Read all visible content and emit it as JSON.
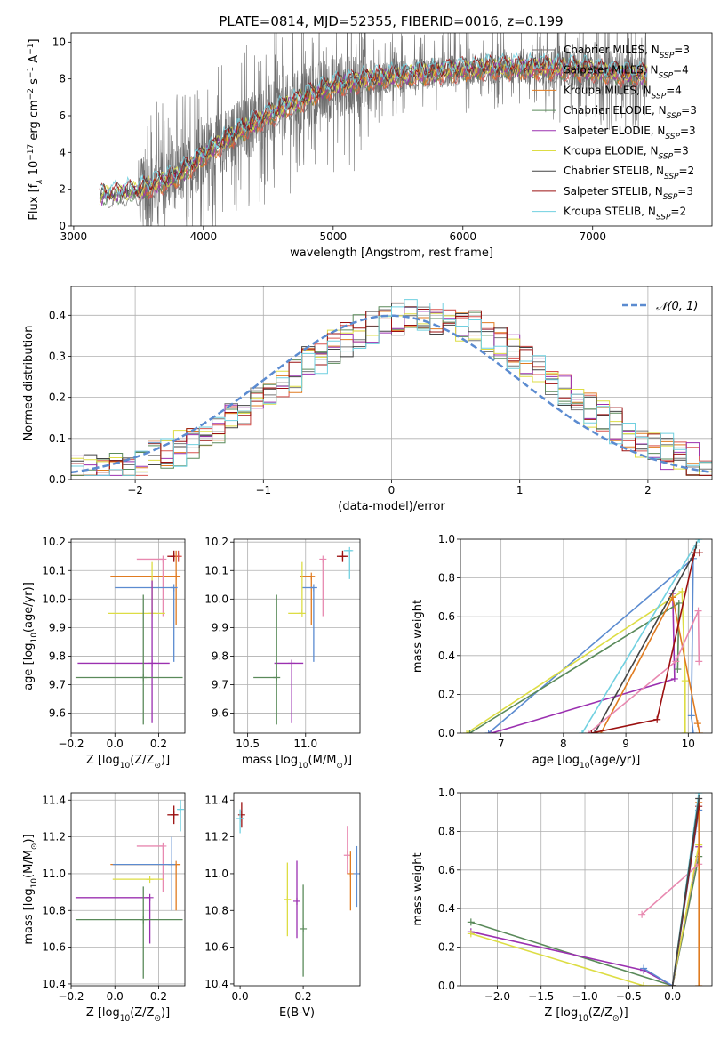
{
  "chart_data": [
    {
      "id": "spectrum",
      "type": "line",
      "title": "PLATE=0814, MJD=52355, FIBERID=0016, z=0.199",
      "xlabel": "wavelength [Angstrom, rest frame]",
      "ylabel": "Flux [f_λ 10^-17 erg cm^-2 s^-1 A^-1]",
      "xlim": [
        2980,
        7920
      ],
      "ylim": [
        0,
        10.5
      ],
      "xticks": [
        3000,
        4000,
        5000,
        6000,
        7000
      ],
      "yticks": [
        0,
        2,
        4,
        6,
        8,
        10
      ],
      "grid": false,
      "legend_position": "top-right",
      "legend": [
        {
          "name": "Chabrier MILES, N_SSP=3",
          "color": "#777777"
        },
        {
          "name": "Salpeter MILES, N_SSP=4",
          "color": "#d9534f"
        },
        {
          "name": "Kroupa MILES, N_SSP=4",
          "color": "#e07b20"
        },
        {
          "name": "Chabrier ELODIE, N_SSP=3",
          "color": "#5a8a5a"
        },
        {
          "name": "Salpeter ELODIE, N_SSP=3",
          "color": "#9b30b0"
        },
        {
          "name": "Kroupa ELODIE, N_SSP=3",
          "color": "#dddd44"
        },
        {
          "name": "Chabrier STELIB, N_SSP=2",
          "color": "#444444"
        },
        {
          "name": "Salpeter STELIB, N_SSP=3",
          "color": "#9b1010"
        },
        {
          "name": "Kroupa STELIB, N_SSP=2",
          "color": "#70d0e0"
        }
      ],
      "continuum_x": [
        3200,
        3500,
        3800,
        4000,
        4200,
        4500,
        4800,
        5000,
        5300,
        5600,
        6000,
        6300,
        6600,
        6900,
        7200,
        7400
      ],
      "continuum_y": [
        1.6,
        1.9,
        2.7,
        3.8,
        4.8,
        6.0,
        7.0,
        7.6,
        8.0,
        8.2,
        8.5,
        8.6,
        8.6,
        8.5,
        8.3,
        8.2
      ]
    },
    {
      "id": "residuals",
      "type": "step",
      "xlabel": "(data-model)/error",
      "ylabel": "Normed distribution",
      "xlim": [
        -2.5,
        2.5
      ],
      "ylim": [
        0,
        0.47
      ],
      "xticks": [
        -2,
        -1,
        0,
        1,
        2
      ],
      "yticks": [
        0.0,
        0.1,
        0.2,
        0.3,
        0.4
      ],
      "grid": true,
      "legend_position": "top-right",
      "legend": [
        {
          "name": "N(0,1)",
          "label": "𝒩(0, 1)",
          "color": "#5b8bd0"
        }
      ],
      "gaussian": {
        "mean": 0,
        "sigma": 1
      }
    },
    {
      "id": "age-vs-Z",
      "type": "errorbar",
      "xlabel": "Z [log10(Z/Z☉)]",
      "ylabel": "age [log10(age/yr)]",
      "xlim": [
        -0.2,
        0.32
      ],
      "ylim": [
        9.53,
        10.21
      ],
      "xticks": [
        -0.2,
        0.0,
        0.2
      ],
      "yticks": [
        9.6,
        9.7,
        9.8,
        9.9,
        10.0,
        10.1,
        10.2
      ],
      "grid": true,
      "points": [
        {
          "color": "#9b1010",
          "x": 0.27,
          "xerr": [
            0.03,
            0.02
          ],
          "y": 10.15,
          "yerr": [
            0.02,
            0.02
          ]
        },
        {
          "color": "#d9534f",
          "x": 0.29,
          "xerr": [
            0.01,
            0.01
          ],
          "y": 10.15,
          "yerr": [
            0.02,
            0.02
          ]
        },
        {
          "color": "#e07b20",
          "x": 0.28,
          "xerr": [
            0.3,
            0.02
          ],
          "y": 10.08,
          "yerr": [
            0.17,
            0.09
          ]
        },
        {
          "color": "#e889b0",
          "x": 0.22,
          "xerr": [
            0.12,
            0.0
          ],
          "y": 10.14,
          "yerr": [
            0.2,
            0.0
          ]
        },
        {
          "color": "#5b8bd0",
          "x": 0.27,
          "xerr": [
            0.27,
            0.0
          ],
          "y": 10.04,
          "yerr": [
            0.26,
            0.0
          ]
        },
        {
          "color": "#dddd44",
          "x": 0.17,
          "xerr": [
            0.2,
            0.06
          ],
          "y": 9.95,
          "yerr": [
            0.0,
            0.18
          ]
        },
        {
          "color": "#9b30b0",
          "x": 0.17,
          "xerr": [
            0.34,
            0.08
          ],
          "y": 9.775,
          "yerr": [
            0.21,
            0.29
          ]
        },
        {
          "color": "#5a8a5a",
          "x": 0.13,
          "xerr": [
            0.31,
            0.18
          ],
          "y": 9.725,
          "yerr": [
            0.165,
            0.29
          ]
        }
      ]
    },
    {
      "id": "age-vs-mass",
      "type": "errorbar",
      "xlabel": "mass [log10(M/M☉)]",
      "ylabel": "",
      "xlim": [
        10.38,
        11.47
      ],
      "ylim": [
        9.53,
        10.21
      ],
      "xticks": [
        10.5,
        11.0
      ],
      "yticks": [
        9.6,
        9.7,
        9.8,
        9.9,
        10.0,
        10.1,
        10.2
      ],
      "grid": true,
      "points": [
        {
          "color": "#9b1010",
          "x": 11.32,
          "xerr": [
            0.05,
            0.05
          ],
          "y": 10.15,
          "yerr": [
            0.02,
            0.02
          ]
        },
        {
          "color": "#70d0e0",
          "x": 11.38,
          "xerr": [
            0.05,
            0.02
          ],
          "y": 10.17,
          "yerr": [
            0.1,
            0.0
          ]
        },
        {
          "color": "#e07b20",
          "x": 11.05,
          "xerr": [
            0.1,
            0.0
          ],
          "y": 10.08,
          "yerr": [
            0.17,
            0.0
          ]
        },
        {
          "color": "#e889b0",
          "x": 11.15,
          "xerr": [
            0.0,
            0.0
          ],
          "y": 10.14,
          "yerr": [
            0.2,
            0.0
          ]
        },
        {
          "color": "#5b8bd0",
          "x": 11.07,
          "xerr": [
            0.1,
            0.0
          ],
          "y": 10.04,
          "yerr": [
            0.26,
            0.0
          ]
        },
        {
          "color": "#dddd44",
          "x": 10.97,
          "xerr": [
            0.12,
            0.0
          ],
          "y": 9.95,
          "yerr": [
            0.0,
            0.18
          ]
        },
        {
          "color": "#9b30b0",
          "x": 10.88,
          "xerr": [
            0.15,
            0.1
          ],
          "y": 9.775,
          "yerr": [
            0.21,
            0.0
          ]
        },
        {
          "color": "#5a8a5a",
          "x": 10.75,
          "xerr": [
            0.2,
            0.0
          ],
          "y": 9.725,
          "yerr": [
            0.165,
            0.29
          ]
        }
      ]
    },
    {
      "id": "massweight-vs-age",
      "type": "line",
      "xlabel": "age [log10(age/yr)]",
      "ylabel": "mass weight",
      "xlim": [
        6.35,
        10.38
      ],
      "ylim": [
        0,
        1
      ],
      "xticks": [
        7,
        8,
        9,
        10
      ],
      "yticks": [
        0.0,
        0.2,
        0.4,
        0.6,
        0.8,
        1.0
      ],
      "grid": true,
      "series": [
        {
          "color": "#5b8bd0",
          "x": [
            6.8,
            10.08,
            10.05,
            10.08
          ],
          "y": [
            0.0,
            0.9,
            0.09,
            0.0
          ]
        },
        {
          "color": "#9b30b0",
          "x": [
            6.85,
            9.78,
            9.75
          ],
          "y": [
            0.0,
            0.28,
            0.72
          ]
        },
        {
          "color": "#dddd44",
          "x": [
            6.45,
            9.9,
            9.95,
            9.95
          ],
          "y": [
            0.0,
            0.73,
            0.27,
            0.0
          ]
        },
        {
          "color": "#5a8a5a",
          "x": [
            6.5,
            9.85,
            9.83
          ],
          "y": [
            0.0,
            0.67,
            0.33
          ]
        },
        {
          "color": "#70d0e0",
          "x": [
            8.3,
            10.17
          ],
          "y": [
            0.0,
            1.0
          ]
        },
        {
          "color": "#444444",
          "x": [
            8.5,
            10.1,
            10.13
          ],
          "y": [
            0.0,
            0.93,
            0.97
          ]
        },
        {
          "color": "#e07b20",
          "x": [
            8.6,
            9.75,
            10.15,
            10.18
          ],
          "y": [
            0.0,
            0.7,
            0.05,
            0.0
          ]
        },
        {
          "color": "#e889b0",
          "x": [
            8.4,
            9.8,
            10.16,
            10.17
          ],
          "y": [
            0.0,
            0.37,
            0.63,
            0.37
          ]
        },
        {
          "color": "#9b1010",
          "x": [
            8.45,
            9.5,
            10.1,
            10.18
          ],
          "y": [
            0.0,
            0.07,
            0.93,
            0.93
          ]
        }
      ]
    },
    {
      "id": "mass-vs-Z",
      "type": "errorbar",
      "xlabel": "Z [log10(Z/Z☉)]",
      "ylabel": "mass [log10(M/M☉)]",
      "xlim": [
        -0.2,
        0.32
      ],
      "ylim": [
        10.39,
        11.44
      ],
      "xticks": [
        -0.2,
        0.0,
        0.2
      ],
      "yticks": [
        10.4,
        10.6,
        10.8,
        11.0,
        11.2,
        11.4
      ],
      "grid": true,
      "points": [
        {
          "color": "#9b1010",
          "x": 0.27,
          "xerr": [
            0.03,
            0.02
          ],
          "y": 11.32,
          "yerr": [
            0.05,
            0.05
          ]
        },
        {
          "color": "#70d0e0",
          "x": 0.3,
          "xerr": [
            0.01,
            0.0
          ],
          "y": 11.35,
          "yerr": [
            0.12,
            0.05
          ]
        },
        {
          "color": "#e07b20",
          "x": 0.28,
          "xerr": [
            0.3,
            0.02
          ],
          "y": 11.05,
          "yerr": [
            0.25,
            0.0
          ]
        },
        {
          "color": "#e889b0",
          "x": 0.22,
          "xerr": [
            0.12,
            0.0
          ],
          "y": 11.15,
          "yerr": [
            0.25,
            0.0
          ]
        },
        {
          "color": "#5b8bd0",
          "x": 0.26,
          "xerr": [
            0.27,
            0.0
          ],
          "y": 11.05,
          "yerr": [
            0.25,
            0.15
          ]
        },
        {
          "color": "#dddd44",
          "x": 0.16,
          "xerr": [
            0.17,
            0.06
          ],
          "y": 10.97,
          "yerr": [
            0.0,
            0.0
          ]
        },
        {
          "color": "#9b30b0",
          "x": 0.16,
          "xerr": [
            0.34,
            0.0
          ],
          "y": 10.87,
          "yerr": [
            0.25,
            0.0
          ]
        },
        {
          "color": "#5a8a5a",
          "x": 0.13,
          "xerr": [
            0.31,
            0.18
          ],
          "y": 10.75,
          "yerr": [
            0.32,
            0.18
          ]
        }
      ]
    },
    {
      "id": "mass-vs-EBV",
      "type": "errorbar",
      "xlabel": "E(B-V)",
      "ylabel": "",
      "xlim": [
        -0.02,
        0.38
      ],
      "ylim": [
        10.39,
        11.44
      ],
      "xticks": [
        0.0,
        0.2
      ],
      "yticks": [
        10.4,
        10.6,
        10.8,
        11.0,
        11.2,
        11.4
      ],
      "grid": false,
      "points": [
        {
          "color": "#9b1010",
          "x": 0.005,
          "xerr": [
            0,
            0
          ],
          "y": 11.32,
          "yerr": [
            0.07,
            0.07
          ]
        },
        {
          "color": "#70d0e0",
          "x": 0.0,
          "xerr": [
            0,
            0
          ],
          "y": 11.3,
          "yerr": [
            0.08,
            0.05
          ]
        },
        {
          "color": "#dddd44",
          "x": 0.15,
          "xerr": [
            0,
            0
          ],
          "y": 10.86,
          "yerr": [
            0.2,
            0.2
          ]
        },
        {
          "color": "#9b30b0",
          "x": 0.18,
          "xerr": [
            0,
            0
          ],
          "y": 10.85,
          "yerr": [
            0.2,
            0.22
          ]
        },
        {
          "color": "#5a8a5a",
          "x": 0.2,
          "xerr": [
            0,
            0
          ],
          "y": 10.7,
          "yerr": [
            0.26,
            0.24
          ]
        },
        {
          "color": "#e889b0",
          "x": 0.34,
          "xerr": [
            0,
            0
          ],
          "y": 11.1,
          "yerr": [
            0.1,
            0.16
          ]
        },
        {
          "color": "#e07b20",
          "x": 0.35,
          "xerr": [
            0,
            0
          ],
          "y": 11.0,
          "yerr": [
            0.2,
            0.12
          ]
        },
        {
          "color": "#5b8bd0",
          "x": 0.37,
          "xerr": [
            0,
            0
          ],
          "y": 11.0,
          "yerr": [
            0.18,
            0.15
          ]
        }
      ]
    },
    {
      "id": "massweight-vs-Z",
      "type": "line",
      "xlabel": "Z [log10(Z/Z☉)]",
      "ylabel": "mass weight",
      "xlim": [
        -2.42,
        0.45
      ],
      "ylim": [
        0,
        1
      ],
      "xticks": [
        -2.0,
        -1.5,
        -1.0,
        -0.5,
        0.0
      ],
      "yticks": [
        0.0,
        0.2,
        0.4,
        0.6,
        0.8,
        1.0
      ],
      "grid": true,
      "series": [
        {
          "color": "#5a8a5a",
          "x": [
            -2.3,
            0.0,
            0.3
          ],
          "y": [
            0.33,
            0.0,
            0.67
          ]
        },
        {
          "color": "#9b30b0",
          "x": [
            -2.3,
            -0.33,
            0.0,
            0.3
          ],
          "y": [
            0.28,
            0.08,
            0.0,
            0.72
          ]
        },
        {
          "color": "#dddd44",
          "x": [
            -2.3,
            -0.33,
            0.0,
            0.3
          ],
          "y": [
            0.27,
            0.0,
            0.0,
            0.73
          ]
        },
        {
          "color": "#5b8bd0",
          "x": [
            -0.33,
            0.0,
            0.3
          ],
          "y": [
            0.09,
            0.0,
            0.91
          ]
        },
        {
          "color": "#e889b0",
          "x": [
            -0.35,
            0.3
          ],
          "y": [
            0.37,
            0.63
          ]
        },
        {
          "color": "#e07b20",
          "x": [
            0.0,
            0.3,
            0.3
          ],
          "y": [
            0.0,
            0.95,
            0.0
          ]
        },
        {
          "color": "#9b1010",
          "x": [
            0.0,
            0.3
          ],
          "y": [
            0.0,
            0.93
          ]
        },
        {
          "color": "#70d0e0",
          "x": [
            0.0,
            0.3
          ],
          "y": [
            0.0,
            1.0
          ]
        },
        {
          "color": "#444444",
          "x": [
            0.0,
            0.3
          ],
          "y": [
            0.0,
            0.97
          ]
        }
      ]
    }
  ]
}
